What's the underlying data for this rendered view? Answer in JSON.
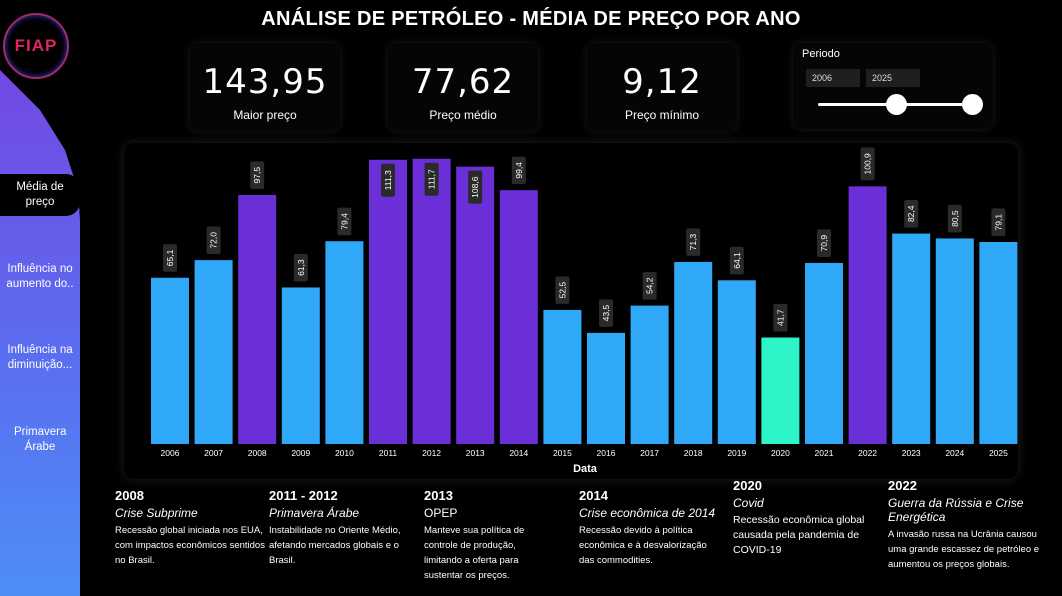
{
  "app": {
    "title": "ANÁLISE DE PETRÓLEO - MÉDIA DE PREÇO POR ANO",
    "logo_text": "FIAP"
  },
  "sidebar": {
    "items": [
      {
        "label": "Média de preço",
        "active": true
      },
      {
        "label": "Influência no aumento do..",
        "active": false
      },
      {
        "label": "Influência na diminuição...",
        "active": false
      },
      {
        "label": "Primavera Árabe",
        "active": false
      }
    ]
  },
  "kpis": [
    {
      "value": "143,95",
      "label": "Maior preço"
    },
    {
      "value": "77,62",
      "label": "Preço médio"
    },
    {
      "value": "9,12",
      "label": "Preço mínimo"
    }
  ],
  "period": {
    "label": "Periodo",
    "start": "2006",
    "end": "2025"
  },
  "chart_data": {
    "type": "bar",
    "xlabel": "Data",
    "ylabel": "",
    "ylim": [
      0,
      112
    ],
    "categories": [
      "2006",
      "2007",
      "2008",
      "2009",
      "2010",
      "2011",
      "2012",
      "2013",
      "2014",
      "2015",
      "2016",
      "2017",
      "2018",
      "2019",
      "2020",
      "2021",
      "2022",
      "2023",
      "2024",
      "2025"
    ],
    "values": [
      65.1,
      72.0,
      97.5,
      61.3,
      79.4,
      111.3,
      111.7,
      108.6,
      99.4,
      52.5,
      43.5,
      54.2,
      71.3,
      64.1,
      41.7,
      70.9,
      100.9,
      82.4,
      80.5,
      79.1
    ],
    "labels": [
      "65,1",
      "72,0",
      "97,5",
      "61,3",
      "79,4",
      "111,3",
      "111,7",
      "108,6",
      "99,4",
      "52,5",
      "43,5",
      "54,2",
      "71,3",
      "64,1",
      "41,7",
      "70,9",
      "100,9",
      "82,4",
      "80,5",
      "79,1"
    ],
    "colors": [
      "#2fa9f7",
      "#2fa9f7",
      "#6a2fd6",
      "#2fa9f7",
      "#2fa9f7",
      "#6a2fd6",
      "#6a2fd6",
      "#6a2fd6",
      "#6a2fd6",
      "#2fa9f7",
      "#2fa9f7",
      "#2fa9f7",
      "#2fa9f7",
      "#2fa9f7",
      "#2ef5c8",
      "#2fa9f7",
      "#6a2fd6",
      "#2fa9f7",
      "#2fa9f7",
      "#2fa9f7"
    ]
  },
  "timeline": [
    {
      "year": "2008",
      "name": "Crise Subprime",
      "desc": "Recessão global iniciada nos EUA, com impactos econômicos sentidos no Brasil."
    },
    {
      "year": "2011 - 2012",
      "name": "Primavera Árabe",
      "desc": "Instabilidade no Oriente Médio, afetando mercados globais e o Brasil."
    },
    {
      "year": "2013",
      "name": "OPEP",
      "desc": "Manteve sua política de controle de produção, limitando a oferta para sustentar os preços."
    },
    {
      "year": "2014",
      "name": "Crise econômica de 2014",
      "desc": "Recessão devido à política econômica e à desvalorização das commodities."
    },
    {
      "year": "2020",
      "name": "Covid",
      "desc": "Recessão econômica global causada pela pandemia de COVID-19"
    },
    {
      "year": "2022",
      "name": "Guerra da Rússia e Crise Energética",
      "desc": "A invasão russa na Ucrânia causou uma grande escassez de petróleo e aumentou os preços globais."
    }
  ]
}
